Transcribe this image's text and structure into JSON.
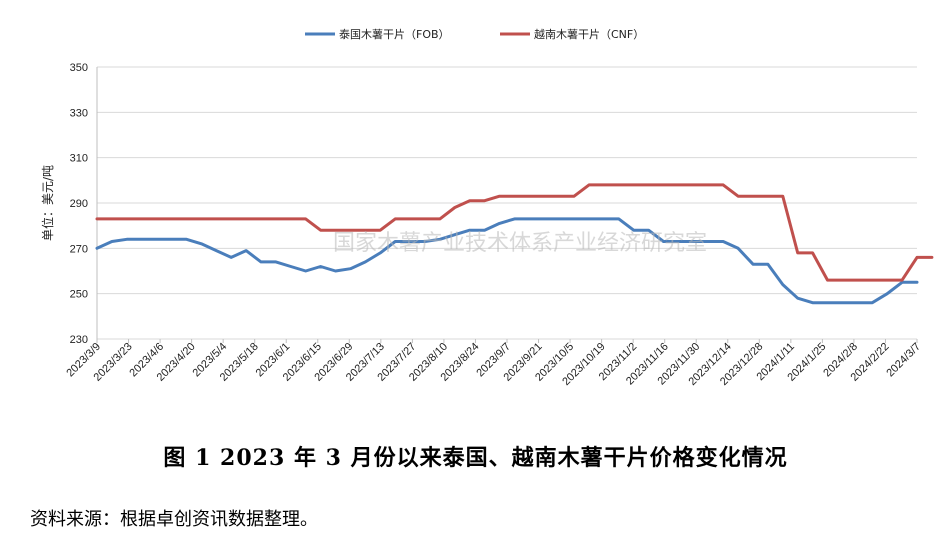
{
  "chart_data": {
    "type": "line",
    "ylabel": "单位：美元/吨",
    "ylim": [
      230,
      350
    ],
    "yticks": [
      230,
      250,
      270,
      290,
      310,
      330,
      350
    ],
    "grid": "horizontal",
    "legend_position": "top-center",
    "watermark": "国家木薯产业技术体系产业经济研究室",
    "x_tick_labels": [
      "2023/3/9",
      "2023/3/23",
      "2023/4/6",
      "2023/4/20",
      "2023/5/4",
      "2023/5/18",
      "2023/6/1",
      "2023/6/15",
      "2023/6/29",
      "2023/7/13",
      "2023/7/27",
      "2023/8/10",
      "2023/8/24",
      "2023/9/7",
      "2023/9/21",
      "2023/10/5",
      "2023/10/19",
      "2023/11/2",
      "2023/11/16",
      "2023/11/30",
      "2023/12/14",
      "2023/12/28",
      "2024/1/11",
      "2024/1/25",
      "2024/2/8",
      "2024/2/22",
      "2024/3/7"
    ],
    "series": [
      {
        "name": "泰国木薯干片（FOB）",
        "color": "#4a7ebb",
        "values": [
          270,
          273,
          274,
          274,
          274,
          274,
          274,
          272,
          269,
          266,
          269,
          264,
          264,
          262,
          260,
          262,
          260,
          261,
          264,
          268,
          273,
          273,
          273,
          274,
          276,
          278,
          278,
          281,
          283,
          283,
          283,
          283,
          283,
          283,
          283,
          283,
          278,
          278,
          273,
          273,
          273,
          273,
          273,
          270,
          263,
          263,
          254,
          248,
          246,
          246,
          246,
          246,
          246,
          250,
          255,
          255
        ]
      },
      {
        "name": "越南木薯干片（CNF）",
        "color": "#c0504d",
        "values": [
          283,
          283,
          283,
          283,
          283,
          283,
          283,
          283,
          283,
          283,
          283,
          283,
          283,
          283,
          283,
          278,
          278,
          278,
          278,
          278,
          283,
          283,
          283,
          283,
          288,
          291,
          291,
          293,
          293,
          293,
          293,
          293,
          293,
          298,
          298,
          298,
          298,
          298,
          298,
          298,
          298,
          298,
          298,
          293,
          293,
          293,
          293,
          268,
          268,
          256,
          256,
          256,
          256,
          256,
          256,
          266,
          266
        ]
      }
    ]
  },
  "caption": "图 1    2023 年 3 月份以来泰国、越南木薯干片价格变化情况",
  "source_note": "资料来源：根据卓创资讯数据整理。"
}
